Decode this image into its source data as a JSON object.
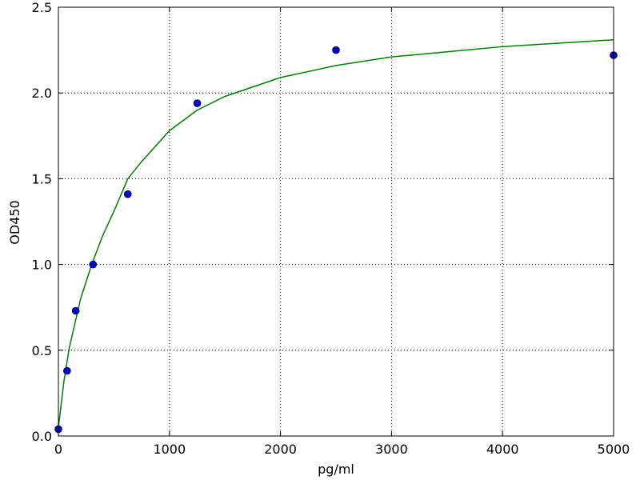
{
  "chart_data": {
    "type": "scatter",
    "xlabel": "pg/ml",
    "ylabel": "OD450",
    "xlim": [
      0,
      5000
    ],
    "ylim": [
      0,
      2.5
    ],
    "xticks": [
      0,
      1000,
      2000,
      3000,
      4000,
      5000
    ],
    "yticks": [
      {
        "value": 0,
        "label": "0.0"
      },
      0.5,
      {
        "value": 1,
        "label": "1.0"
      },
      1.5,
      {
        "value": 2,
        "label": "2.0"
      },
      2.5
    ],
    "grid": true,
    "series": [
      {
        "type": "line",
        "color": "#008000",
        "x": [
          0,
          50,
          100,
          200,
          300,
          400,
          500,
          625,
          750,
          1000,
          1250,
          1500,
          2000,
          2500,
          3000,
          3500,
          4000,
          4500,
          5000
        ],
        "values": [
          0.05,
          0.32,
          0.52,
          0.8,
          1.0,
          1.17,
          1.31,
          1.5,
          1.6,
          1.78,
          1.9,
          1.98,
          2.09,
          2.16,
          2.21,
          2.24,
          2.27,
          2.29,
          2.31
        ]
      },
      {
        "type": "scatter",
        "color": "#0000cc",
        "x": [
          0,
          78,
          156,
          312,
          625,
          1250,
          2500,
          5000
        ],
        "values": [
          0.04,
          0.38,
          0.73,
          1.0,
          1.41,
          1.94,
          2.25,
          2.22
        ]
      }
    ]
  }
}
